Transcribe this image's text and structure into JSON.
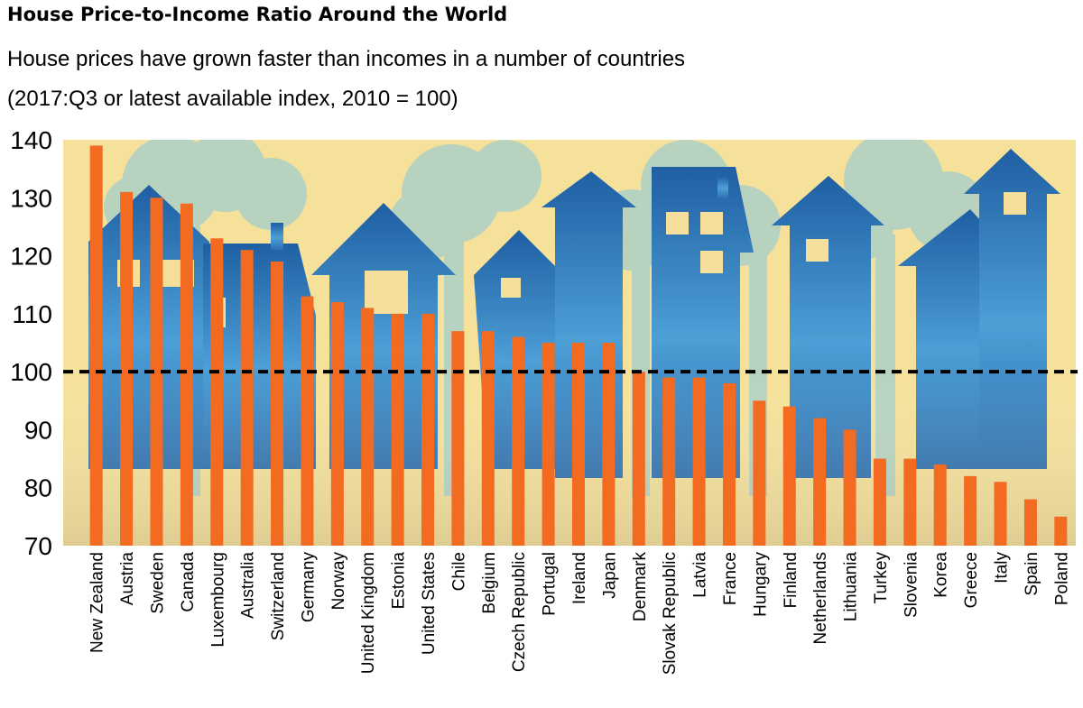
{
  "header": {
    "title": "House Price-to-Income Ratio Around the World",
    "subtitle": "House prices have grown faster than incomes in a number of countries",
    "note": "(2017:Q3 or latest available index, 2010 = 100)"
  },
  "colors": {
    "bar": "#f26b21",
    "background": "#f5e19a",
    "reference_line": "#000000",
    "house": "#2d6fae",
    "tree": "#b7d3c0"
  },
  "chart_data": {
    "type": "bar",
    "title": "House Price-to-Income Ratio Around the World",
    "subtitle": "House prices have grown faster than incomes in a number of countries",
    "xlabel": "",
    "ylabel": "",
    "ylim": [
      70,
      140
    ],
    "yticks": [
      70,
      80,
      90,
      100,
      110,
      120,
      130,
      140
    ],
    "reference_line": 100,
    "categories": [
      "New Zealand",
      "Austria",
      "Sweden",
      "Canada",
      "Luxembourg",
      "Australia",
      "Switzerland",
      "Germany",
      "Norway",
      "United Kingdom",
      "Estonia",
      "United States",
      "Chile",
      "Belgium",
      "Czech Republic",
      "Portugal",
      "Ireland",
      "Japan",
      "Denmark",
      "Slovak Republic",
      "Latvia",
      "France",
      "Hungary",
      "Finland",
      "Netherlands",
      "Lithuania",
      "Turkey",
      "Slovenia",
      "Korea",
      "Greece",
      "Italy",
      "Spain",
      "Poland"
    ],
    "values": [
      139,
      131,
      130,
      129,
      123,
      121,
      119,
      113,
      112,
      111,
      110,
      110,
      107,
      107,
      106,
      105,
      105,
      105,
      100,
      99,
      99,
      98,
      95,
      94,
      92,
      90,
      85,
      85,
      84,
      82,
      81,
      78,
      75
    ]
  }
}
